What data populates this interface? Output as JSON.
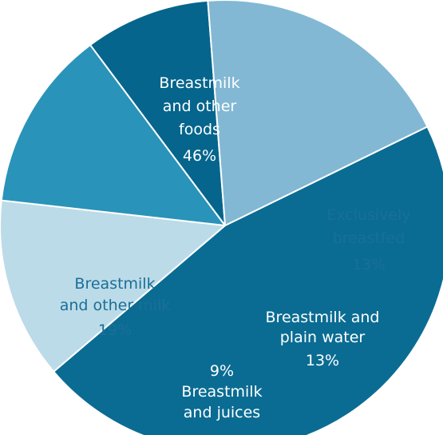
{
  "chart_data": {
    "type": "pie",
    "slices": [
      {
        "label_lines": [
          "Breastmilk",
          "and other",
          "foods"
        ],
        "value": 46,
        "value_text": "46%",
        "color": "#0a6c93",
        "text_color": "#ffffff"
      },
      {
        "label_lines": [
          "Exclusively",
          "breastfed"
        ],
        "value": 13,
        "value_text": "13%",
        "color": "#bcdbe8",
        "text_color": "#1a6f97"
      },
      {
        "label_lines": [
          "Breastmilk and",
          "plain water"
        ],
        "value": 13,
        "value_text": "13%",
        "color": "#2a93b9",
        "text_color": "#ffffff"
      },
      {
        "label_lines": [
          "Breastmilk",
          "and juices"
        ],
        "value": 9,
        "value_text": "9%",
        "color": "#05658c",
        "text_color": "#ffffff"
      },
      {
        "label_lines": [
          "Breastmilk",
          "and other milk"
        ],
        "value": 19,
        "value_text": "19%",
        "color": "#82b8d4",
        "text_color": "#1a6f97"
      }
    ]
  }
}
